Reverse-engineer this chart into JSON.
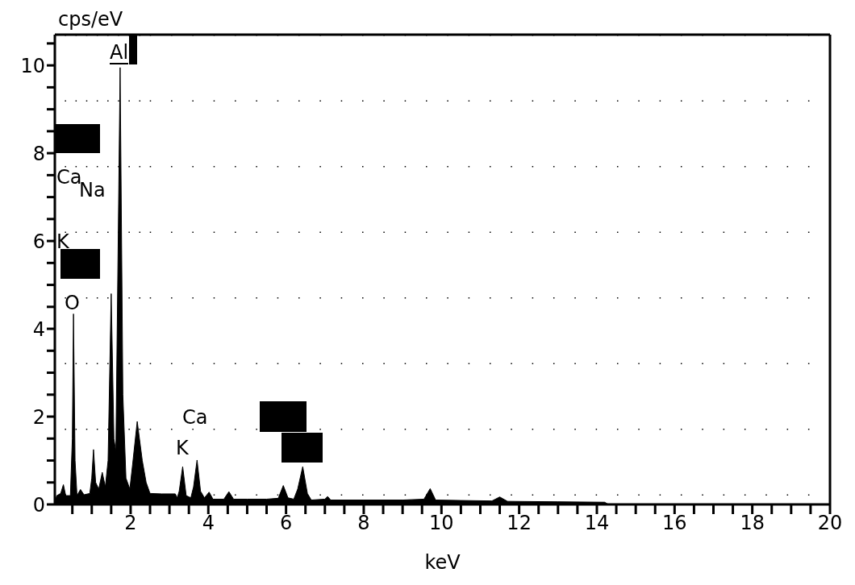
{
  "chart_data": {
    "type": "area",
    "xlabel": "keV",
    "ylabel": "cps/eV",
    "color": "#000000",
    "grid": true,
    "annotations": [
      "Al",
      "Ca",
      "Na",
      "K",
      "O",
      "Ca",
      "K"
    ],
    "x": [
      0.05,
      0.1,
      0.2,
      0.27,
      0.33,
      0.45,
      0.5,
      0.53,
      0.57,
      0.62,
      0.71,
      0.8,
      0.95,
      1.0,
      1.045,
      1.1,
      1.18,
      1.27,
      1.35,
      1.42,
      1.5,
      1.57,
      1.62,
      1.73,
      1.8,
      1.88,
      1.98,
      2.05,
      2.17,
      2.3,
      2.4,
      2.5,
      2.8,
      3.15,
      3.2,
      3.25,
      3.34,
      3.43,
      3.55,
      3.62,
      3.71,
      3.8,
      3.9,
      4.02,
      4.12,
      4.4,
      4.53,
      4.65,
      5.0,
      5.5,
      5.8,
      5.93,
      6.05,
      6.2,
      6.3,
      6.43,
      6.55,
      6.65,
      7.0,
      7.07,
      7.15,
      8,
      9,
      9.55,
      9.71,
      9.85,
      10.5,
      11.3,
      11.5,
      11.7,
      13,
      14.2,
      14.3,
      20
    ],
    "values": [
      0.05,
      0.2,
      0.25,
      0.45,
      0.2,
      0.2,
      1.5,
      4.34,
      1.0,
      0.2,
      0.34,
      0.22,
      0.25,
      0.6,
      1.25,
      0.5,
      0.35,
      0.73,
      0.4,
      1.0,
      4.8,
      1.5,
      1.2,
      9.95,
      2.5,
      0.6,
      0.35,
      0.9,
      1.89,
      1.0,
      0.5,
      0.25,
      0.24,
      0.24,
      0.15,
      0.3,
      0.86,
      0.2,
      0.15,
      0.4,
      1.01,
      0.3,
      0.15,
      0.28,
      0.12,
      0.12,
      0.29,
      0.12,
      0.12,
      0.12,
      0.14,
      0.43,
      0.15,
      0.12,
      0.35,
      0.86,
      0.25,
      0.1,
      0.12,
      0.18,
      0.1,
      0.1,
      0.1,
      0.12,
      0.36,
      0.1,
      0.09,
      0.08,
      0.17,
      0.07,
      0.06,
      0.05,
      0,
      0
    ],
    "xlim": [
      0.05,
      20
    ],
    "ylim": [
      0,
      10.7
    ],
    "xticks": [
      {
        "value": 0.5,
        "label": null
      },
      {
        "value": 1,
        "label": null
      },
      {
        "value": 1.5,
        "label": null
      },
      2,
      {
        "value": 2.5,
        "label": null
      },
      {
        "value": 3,
        "label": null
      },
      {
        "value": 3.5,
        "label": null
      },
      4,
      {
        "value": 4.5,
        "label": null
      },
      {
        "value": 5,
        "label": null
      },
      {
        "value": 5.5,
        "label": null
      },
      6,
      {
        "value": 6.5,
        "label": null
      },
      {
        "value": 7,
        "label": null
      },
      {
        "value": 7.5,
        "label": null
      },
      8,
      {
        "value": 8.5,
        "label": null
      },
      {
        "value": 9,
        "label": null
      },
      {
        "value": 9.5,
        "label": null
      },
      10,
      {
        "value": 10.5,
        "label": null
      },
      {
        "value": 11,
        "label": null
      },
      {
        "value": 11.5,
        "label": null
      },
      12,
      {
        "value": 12.5,
        "label": null
      },
      {
        "value": 13,
        "label": null
      },
      {
        "value": 13.5,
        "label": null
      },
      14,
      {
        "value": 14.5,
        "label": null
      },
      {
        "value": 15,
        "label": null
      },
      {
        "value": 15.5,
        "label": null
      },
      16,
      {
        "value": 16.5,
        "label": null
      },
      {
        "value": 17,
        "label": null
      },
      {
        "value": 17.5,
        "label": null
      },
      18,
      {
        "value": 18.5,
        "label": null
      },
      {
        "value": 19,
        "label": null
      },
      {
        "value": 19.5,
        "label": null
      },
      20
    ],
    "yticks": [
      0,
      {
        "value": 0.5,
        "label": null
      },
      {
        "value": 1,
        "label": null
      },
      {
        "value": 1.5,
        "label": null
      },
      2,
      {
        "value": 2.5,
        "label": null
      },
      {
        "value": 3,
        "label": null
      },
      {
        "value": 3.5,
        "label": null
      },
      4,
      {
        "value": 4.5,
        "label": null
      },
      {
        "value": 5,
        "label": null
      },
      {
        "value": 5.5,
        "label": null
      },
      6,
      {
        "value": 6.5,
        "label": null
      },
      {
        "value": 7,
        "label": null
      },
      {
        "value": 7.5,
        "label": null
      },
      8,
      {
        "value": 8.5,
        "label": null
      },
      {
        "value": 9,
        "label": null
      },
      {
        "value": 9.5,
        "label": null
      },
      10,
      {
        "value": 10.5,
        "label": null
      }
    ]
  }
}
